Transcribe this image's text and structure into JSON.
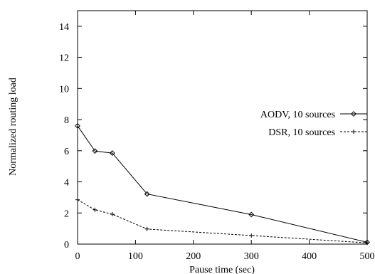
{
  "chart_data": {
    "type": "line",
    "title": "",
    "xlabel": "Pause time (sec)",
    "ylabel": "Normalized routing load",
    "xlim": [
      0,
      500
    ],
    "ylim": [
      0,
      15
    ],
    "xticks": [
      0,
      100,
      200,
      300,
      400,
      500
    ],
    "yticks": [
      0,
      2,
      4,
      6,
      8,
      10,
      12,
      14
    ],
    "xtick_labels": [
      "0",
      "100",
      "200",
      "300",
      "400",
      "500"
    ],
    "ytick_labels": [
      "0",
      "2",
      "4",
      "6",
      "8",
      "10",
      "12",
      "14"
    ],
    "grid": false,
    "legend_position": "right",
    "series": [
      {
        "name": "AODV, 10 sources",
        "line_style": "solid",
        "marker": "diamond",
        "color": "#000000",
        "x": [
          0,
          30,
          60,
          120,
          300,
          500
        ],
        "y": [
          7.6,
          5.98,
          5.85,
          3.22,
          1.9,
          0.12
        ]
      },
      {
        "name": "DSR, 10 sources",
        "line_style": "dashed",
        "marker": "plus",
        "color": "#000000",
        "x": [
          0,
          30,
          60,
          120,
          300,
          500
        ],
        "y": [
          2.85,
          2.2,
          1.92,
          0.97,
          0.55,
          0.08
        ]
      }
    ]
  }
}
